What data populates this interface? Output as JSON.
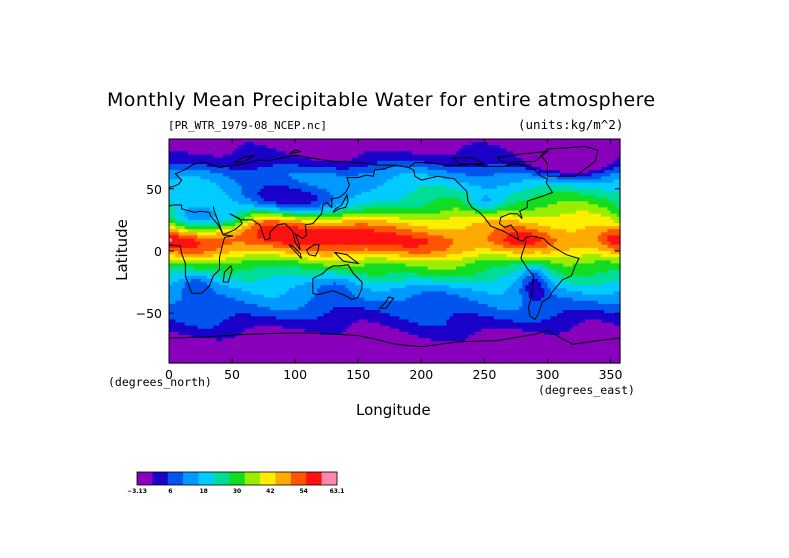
{
  "chart_data": {
    "type": "heatmap",
    "title": "Monthly Mean Precipitable Water for entire atmosphere",
    "subtitle_left": "[PR_WTR_1979-08_NCEP.nc]",
    "subtitle_right": "(units:kg/m^2)",
    "xlabel": "Longitude",
    "ylabel": "Latitude",
    "x_units_left": "(degrees_north)",
    "x_units_right": "(degrees_east)",
    "xlim": [
      0,
      357.5
    ],
    "ylim": [
      -90,
      90
    ],
    "x_ticks": [
      0,
      50,
      100,
      150,
      200,
      250,
      300,
      350
    ],
    "y_ticks": [
      50,
      0,
      -50
    ],
    "y_tick_labels": [
      "50",
      "0",
      "−50"
    ],
    "grid": false,
    "colorbar": {
      "position": "bottom-left",
      "tick_labels": [
        "−3.13",
        "6",
        "18",
        "30",
        "42",
        "54",
        "63.1"
      ],
      "colors": [
        "#8800bb",
        "#1a00c8",
        "#0055ee",
        "#0099ff",
        "#00ccff",
        "#00dd99",
        "#11dd22",
        "#99ee00",
        "#ffee00",
        "#ffaa00",
        "#ff5500",
        "#ff1111",
        "#ff88aa"
      ]
    },
    "latitude_profile": [
      {
        "lat": 90,
        "value": -3
      },
      {
        "lat": 80,
        "value": 1
      },
      {
        "lat": 70,
        "value": 6
      },
      {
        "lat": 62,
        "value": 14
      },
      {
        "lat": 55,
        "value": 19
      },
      {
        "lat": 45,
        "value": 26
      },
      {
        "lat": 35,
        "value": 32
      },
      {
        "lat": 25,
        "value": 40
      },
      {
        "lat": 15,
        "value": 46
      },
      {
        "lat": 8,
        "value": 49
      },
      {
        "lat": 0,
        "value": 44
      },
      {
        "lat": -10,
        "value": 32
      },
      {
        "lat": -20,
        "value": 24
      },
      {
        "lat": -30,
        "value": 17
      },
      {
        "lat": -40,
        "value": 12
      },
      {
        "lat": -50,
        "value": 8
      },
      {
        "lat": -60,
        "value": 4
      },
      {
        "lat": -70,
        "value": 0
      },
      {
        "lat": -80,
        "value": -3
      },
      {
        "lat": -90,
        "value": -3
      }
    ],
    "anomalies": [
      {
        "lon": 80,
        "lat": 22,
        "dlon": 22,
        "dlat": 9,
        "amp": 10
      },
      {
        "lon": 135,
        "lat": 15,
        "dlon": 28,
        "dlat": 9,
        "amp": 12
      },
      {
        "lon": 180,
        "lat": 5,
        "dlon": 50,
        "dlat": 8,
        "amp": 3
      },
      {
        "lon": 280,
        "lat": 10,
        "dlon": 15,
        "dlat": 7,
        "amp": 8
      },
      {
        "lon": 355,
        "lat": 10,
        "dlon": 8,
        "dlat": 6,
        "amp": 8
      },
      {
        "lon": 15,
        "lat": 5,
        "dlon": 15,
        "dlat": 8,
        "amp": 4
      },
      {
        "lon": 100,
        "lat": 40,
        "dlon": 40,
        "dlat": 10,
        "amp": -26
      },
      {
        "lon": 20,
        "lat": 25,
        "dlon": 15,
        "dlat": 8,
        "amp": -20
      },
      {
        "lon": 50,
        "lat": 25,
        "dlon": 12,
        "dlat": 6,
        "amp": -14
      },
      {
        "lon": 250,
        "lat": 38,
        "dlon": 10,
        "dlat": 6,
        "amp": -12
      },
      {
        "lon": 290,
        "lat": -25,
        "dlon": 8,
        "dlat": 12,
        "amp": -14
      },
      {
        "lon": 135,
        "lat": -25,
        "dlon": 15,
        "dlat": 7,
        "amp": -10
      },
      {
        "lon": 22,
        "lat": -25,
        "dlon": 8,
        "dlat": 6,
        "amp": -7
      },
      {
        "lon": 205,
        "lat": -20,
        "dlon": 40,
        "dlat": 6,
        "amp": 4
      },
      {
        "lon": 320,
        "lat": 70,
        "dlon": 25,
        "dlat": 8,
        "amp": -12
      },
      {
        "lon": 250,
        "lat": 10,
        "dlon": 25,
        "dlat": 8,
        "amp": -4
      }
    ]
  }
}
